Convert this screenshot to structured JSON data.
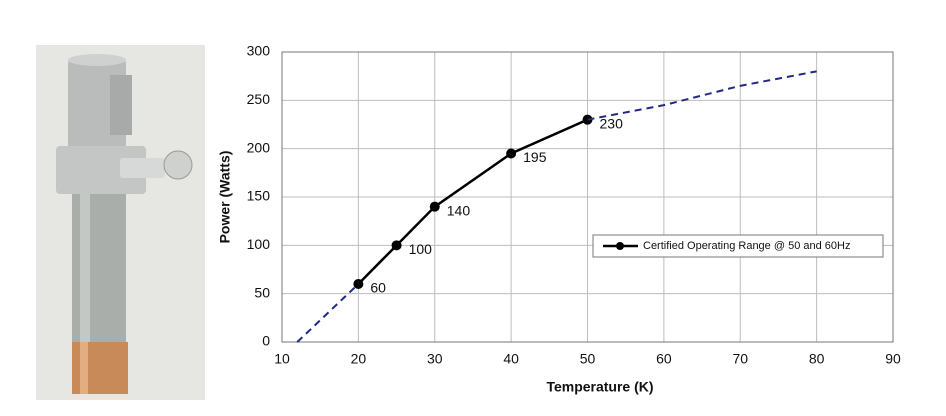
{
  "chart_data": {
    "type": "line",
    "xlabel": "Temperature (K)",
    "ylabel": "Power (Watts)",
    "xlim": [
      10,
      90
    ],
    "xticks": [
      10,
      20,
      30,
      40,
      50,
      60,
      70,
      80,
      90
    ],
    "ylim": [
      0,
      300
    ],
    "yticks": [
      0,
      50,
      100,
      150,
      200,
      250,
      300
    ],
    "grid": true,
    "legend": "right",
    "series": [
      {
        "name": "Certified Operating Range @ 50 and 60Hz",
        "color": "#000000",
        "style": "solid",
        "markers": true,
        "data_labels": true,
        "x": [
          20,
          25,
          30,
          40,
          50
        ],
        "values": [
          60,
          100,
          140,
          195,
          230
        ]
      },
      {
        "color": "#1f2a80",
        "style": "dashed",
        "x": [
          12,
          20
        ],
        "values": [
          0,
          60
        ]
      },
      {
        "color": "#1f2a80",
        "style": "dashed",
        "x": [
          50,
          60,
          70,
          80
        ],
        "values": [
          230,
          245,
          265,
          280
        ]
      }
    ]
  }
}
